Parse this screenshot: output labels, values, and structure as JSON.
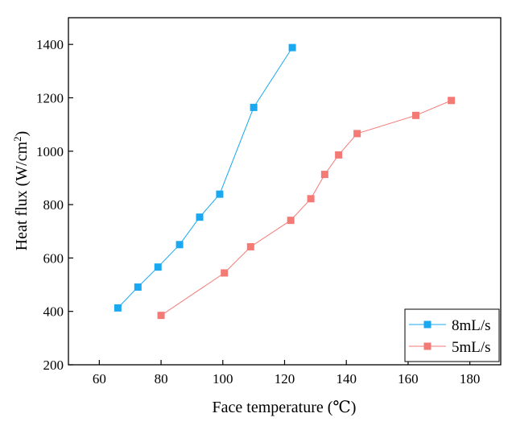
{
  "chart_data": {
    "type": "line",
    "title": "",
    "xlabel": "Face temperature (℃)",
    "ylabel_main": "Heat flux (W/cm",
    "ylabel_sup": "2",
    "ylabel_close": ")",
    "xlim": [
      50,
      190
    ],
    "ylim": [
      200,
      1500
    ],
    "x_ticks": [
      60,
      80,
      100,
      120,
      140,
      160,
      180
    ],
    "y_ticks": [
      200,
      400,
      600,
      800,
      1000,
      1200,
      1400
    ],
    "grid": false,
    "legend_position": "bottom-right",
    "series": [
      {
        "name": "8mL/s",
        "color": "#1aa8f0",
        "marker": "square",
        "points": [
          {
            "x": 66,
            "y": 413
          },
          {
            "x": 72.5,
            "y": 491
          },
          {
            "x": 79,
            "y": 566
          },
          {
            "x": 86,
            "y": 650
          },
          {
            "x": 92.5,
            "y": 753
          },
          {
            "x": 99,
            "y": 839
          },
          {
            "x": 110,
            "y": 1164
          },
          {
            "x": 122.5,
            "y": 1388
          }
        ]
      },
      {
        "name": "5mL/s",
        "color": "#f47a76",
        "marker": "square",
        "points": [
          {
            "x": 80,
            "y": 385
          },
          {
            "x": 100.5,
            "y": 544
          },
          {
            "x": 109,
            "y": 642
          },
          {
            "x": 122,
            "y": 741
          },
          {
            "x": 128.5,
            "y": 822
          },
          {
            "x": 133,
            "y": 913
          },
          {
            "x": 137.5,
            "y": 986
          },
          {
            "x": 143.5,
            "y": 1066
          },
          {
            "x": 162.5,
            "y": 1134
          },
          {
            "x": 174,
            "y": 1190
          }
        ]
      }
    ]
  }
}
